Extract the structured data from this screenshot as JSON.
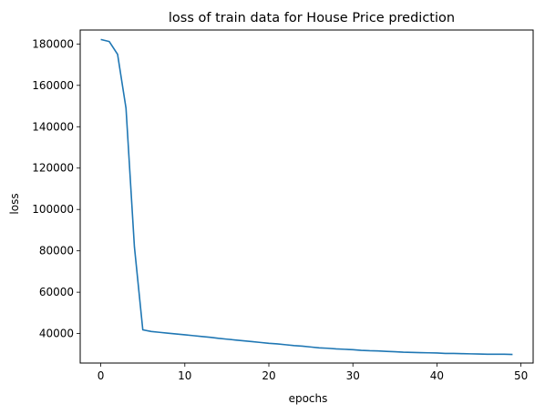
{
  "chart_data": {
    "type": "line",
    "title": "loss of train data for House Price prediction",
    "xlabel": "epochs",
    "ylabel": "loss",
    "xlim": [
      -2.45,
      51.45
    ],
    "ylim": [
      25750,
      186750
    ],
    "xticks": [
      0,
      10,
      20,
      30,
      40,
      50
    ],
    "yticks": [
      40000,
      60000,
      80000,
      100000,
      120000,
      140000,
      160000,
      180000
    ],
    "grid": false,
    "line_color": "#1f77b4",
    "series": [
      {
        "x": [
          0,
          1,
          2,
          3,
          4,
          5,
          6,
          7,
          8,
          9,
          10,
          11,
          12,
          13,
          14,
          15,
          16,
          17,
          18,
          19,
          20,
          21,
          22,
          23,
          24,
          25,
          26,
          27,
          28,
          29,
          30,
          31,
          32,
          33,
          34,
          35,
          36,
          37,
          38,
          39,
          40,
          41,
          42,
          43,
          44,
          45,
          46,
          47,
          48,
          49
        ],
        "values": [
          182200,
          181200,
          175000,
          149000,
          82000,
          41800,
          41000,
          40600,
          40200,
          39800,
          39400,
          39000,
          38600,
          38200,
          37700,
          37300,
          36900,
          36500,
          36100,
          35700,
          35300,
          35000,
          34600,
          34200,
          33900,
          33500,
          33100,
          32900,
          32600,
          32400,
          32200,
          31900,
          31700,
          31600,
          31400,
          31200,
          31000,
          30900,
          30800,
          30700,
          30600,
          30400,
          30400,
          30300,
          30200,
          30100,
          30000,
          30000,
          30000,
          29900
        ]
      }
    ]
  }
}
